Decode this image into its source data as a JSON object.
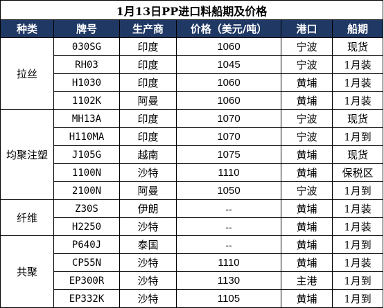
{
  "title": "1月13日PP进口料船期及价格",
  "headers": [
    "种类",
    "牌号",
    "生产商",
    "价格（美元/吨）",
    "港口",
    "船期"
  ],
  "groups": [
    {
      "category": "拉丝",
      "rows": [
        {
          "grade": "030SG",
          "producer": "印度",
          "price": "1060",
          "port": "宁波",
          "schedule": "现货"
        },
        {
          "grade": "RH03",
          "producer": "印度",
          "price": "1045",
          "port": "宁波",
          "schedule": "1月装"
        },
        {
          "grade": "H1030",
          "producer": "印度",
          "price": "1060",
          "port": "黄埔",
          "schedule": "1月装"
        },
        {
          "grade": "1102K",
          "producer": "阿曼",
          "price": "1060",
          "port": "黄埔",
          "schedule": "1月装"
        }
      ]
    },
    {
      "category": "均聚注塑",
      "rows": [
        {
          "grade": "MH13A",
          "producer": "印度",
          "price": "1070",
          "port": "宁波",
          "schedule": "现货"
        },
        {
          "grade": "H110MA",
          "producer": "印度",
          "price": "1070",
          "port": "宁波",
          "schedule": "1月到"
        },
        {
          "grade": "J105G",
          "producer": "越南",
          "price": "1075",
          "port": "黄埔",
          "schedule": "现货"
        },
        {
          "grade": "1100N",
          "producer": "沙特",
          "price": "1110",
          "port": "黄埔",
          "schedule": "保税区"
        },
        {
          "grade": "2100N",
          "producer": "阿曼",
          "price": "1050",
          "port": "宁波",
          "schedule": "1月到"
        }
      ]
    },
    {
      "category": "纤维",
      "rows": [
        {
          "grade": "Z30S",
          "producer": "伊朗",
          "price": "--",
          "port": "黄埔",
          "schedule": "1月装"
        },
        {
          "grade": "H2250",
          "producer": "沙特",
          "price": "--",
          "port": "黄埔",
          "schedule": "1月装"
        }
      ]
    },
    {
      "category": "共聚",
      "rows": [
        {
          "grade": "P640J",
          "producer": "泰国",
          "price": "--",
          "port": "黄埔",
          "schedule": "1月到"
        },
        {
          "grade": "CP55N",
          "producer": "沙特",
          "price": "1110",
          "port": "黄埔",
          "schedule": "1月装"
        },
        {
          "grade": "EP300R",
          "producer": "沙特",
          "price": "1130",
          "port": "主港",
          "schedule": "1月到"
        },
        {
          "grade": "EP332K",
          "producer": "沙特",
          "price": "1105",
          "port": "黄埔",
          "schedule": "1月到"
        }
      ]
    }
  ],
  "colors": {
    "header_bg": "#1f3864",
    "header_text": "#ffffff",
    "border": "#000000"
  }
}
